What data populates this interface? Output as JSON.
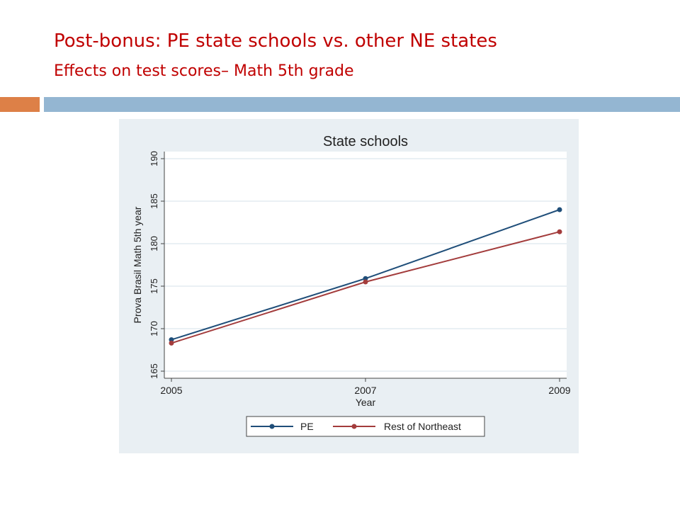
{
  "slide": {
    "title": "Post-bonus: PE state schools vs. other NE states",
    "subtitle": "Effects on test scores– Math 5th grade"
  },
  "colors": {
    "title": "#c00000",
    "accent_orange": "#dd8047",
    "accent_blue": "#94b6d2",
    "panel_bg": "#e9eff3"
  },
  "chart_data": {
    "type": "line",
    "title": "State schools",
    "xlabel": "Year",
    "ylabel": "Prova Brasil Math 5th year",
    "x": [
      2005,
      2007,
      2009
    ],
    "xticks": [
      "2005",
      "2007",
      "2009"
    ],
    "yticks": [
      "165",
      "170",
      "175",
      "180",
      "185",
      "190"
    ],
    "ylim": [
      165,
      190
    ],
    "grid": true,
    "legend": "bottom",
    "series": [
      {
        "name": "PE",
        "values": [
          168.7,
          175.9,
          184.0
        ],
        "color": "#1f4e79"
      },
      {
        "name": "Rest of Northeast",
        "values": [
          168.3,
          175.5,
          181.4
        ],
        "color": "#a33c3c"
      }
    ]
  }
}
